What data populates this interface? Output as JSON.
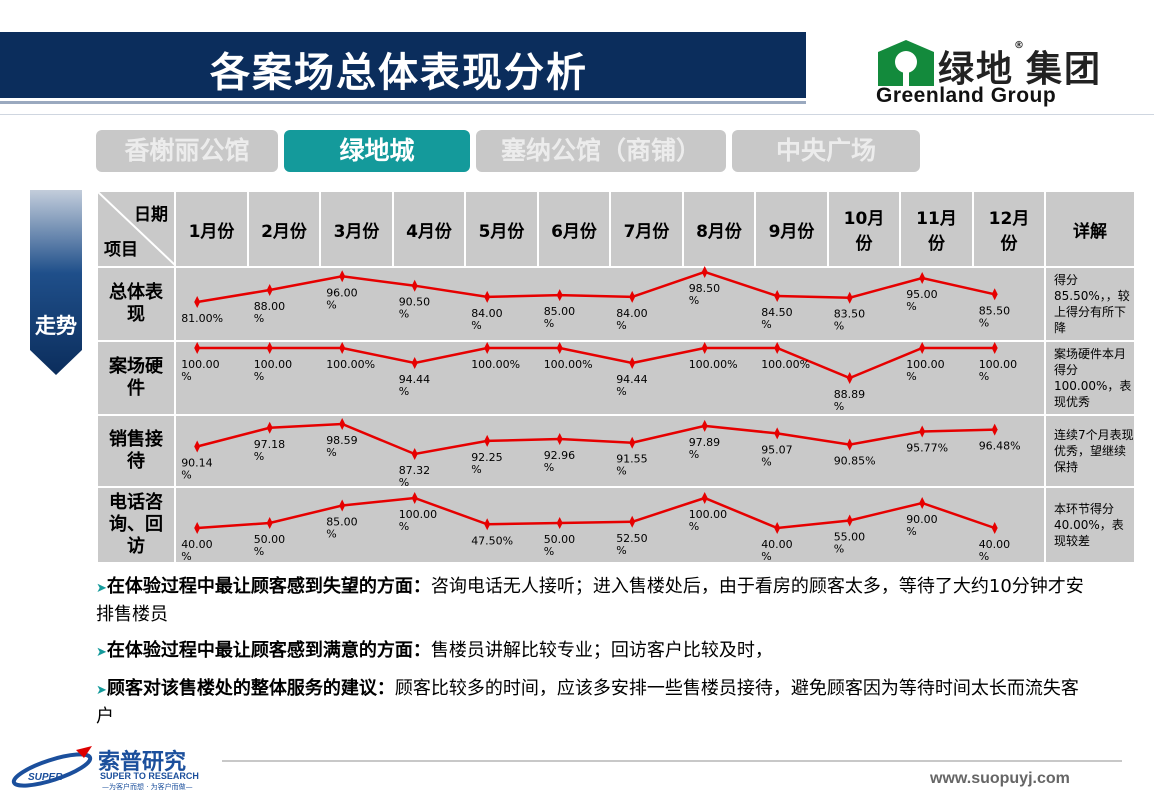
{
  "header": {
    "title": "各案场总体表现分析"
  },
  "logo": {
    "cn": "绿地",
    "reg": "®",
    "cn2": "集团",
    "en": "Greenland Group"
  },
  "tabs": [
    {
      "label": "香榭丽公馆",
      "active": false
    },
    {
      "label": "绿地城",
      "active": true
    },
    {
      "label": "塞纳公馆（商铺）",
      "active": false
    },
    {
      "label": "中央广场",
      "active": false
    }
  ],
  "side_label": "走势",
  "table": {
    "corner_top": "日期",
    "corner_bottom": "项目",
    "months": [
      "1月份",
      "2月份",
      "3月份",
      "4月份",
      "5月份",
      "6月份",
      "7月份",
      "8月份",
      "9月份",
      "10月份",
      "11月份",
      "12月份"
    ],
    "detail_header": "详解",
    "rows": [
      {
        "label": "总体表现",
        "detail": "得分85.50%，，较上得分有所下降",
        "values": [
          81.0,
          88.0,
          96.0,
          90.5,
          84.0,
          85.0,
          84.0,
          98.5,
          84.5,
          83.5,
          95.0,
          85.5
        ],
        "labels": [
          "81.00%",
          "88.00 %",
          "96.00 %",
          "90.50 %",
          "84.00 %",
          "85.00 %",
          "84.00 %",
          "98.50 %",
          "84.50 %",
          "83.50 %",
          "95.00 %",
          "85.50 %"
        ]
      },
      {
        "label": "案场硬件",
        "detail": "案场硬件本月得分100.00%，表现优秀",
        "values": [
          100.0,
          100.0,
          100.0,
          94.44,
          100.0,
          100.0,
          94.44,
          100.0,
          100.0,
          88.89,
          100.0,
          100.0
        ],
        "labels": [
          "100.00 %",
          "100.00 %",
          "100.00%",
          "94.44 %",
          "100.00%",
          "100.00%",
          "94.44 %",
          "100.00%",
          "100.00%",
          "88.89 %",
          "100.00 %",
          "100.00 %"
        ]
      },
      {
        "label": "销售接待",
        "detail": "连续7个月表现优秀，望继续保持",
        "values": [
          90.14,
          97.18,
          98.59,
          87.32,
          92.25,
          92.96,
          91.55,
          97.89,
          95.07,
          90.85,
          95.77,
          96.48
        ],
        "labels": [
          "90.14 %",
          "97.18 %",
          "98.59 %",
          "87.32 %",
          "92.25 %",
          "92.96 %",
          "91.55 %",
          "97.89 %",
          "95.07 %",
          "90.85%",
          "95.77%",
          "96.48%"
        ]
      },
      {
        "label": "电话咨询、回访",
        "detail": "本环节得分40.00%，表现较差",
        "values": [
          40.0,
          50.0,
          85.0,
          100.0,
          47.5,
          50.0,
          52.5,
          100.0,
          40.0,
          55.0,
          90.0,
          40.0
        ],
        "labels": [
          "40.00 %",
          "50.00 %",
          "85.00 %",
          "100.00 %",
          "47.50%",
          "50.00 %",
          "52.50 %",
          "100.00 %",
          "40.00 %",
          "55.00 %",
          "90.00 %",
          "40.00 %"
        ]
      }
    ]
  },
  "notes": [
    {
      "bold": "在体验过程中最让顾客感到失望的方面：",
      "text": "咨询电话无人接听；进入售楼处后，由于看房的顾客太多，等待了大约10分钟才安排售楼员"
    },
    {
      "bold": "在体验过程中最让顾客感到满意的方面：",
      "text": "售楼员讲解比较专业；回访客户比较及时，"
    },
    {
      "bold": "顾客对该售楼处的整体服务的建议：",
      "text": "顾客比较多的时间，应该多安排一些售楼员接待，避免顾客因为等待时间太长而流失客户"
    }
  ],
  "footer": {
    "cn": "索普研究",
    "en": "SUPER TO RESEARCH",
    "slogan": "—为客户而想 · 为客户而做—",
    "badge": "SUPER",
    "url": "www.suopuyj.com"
  },
  "chart_data": [
    {
      "type": "line",
      "name": "总体表现",
      "categories": [
        "1月份",
        "2月份",
        "3月份",
        "4月份",
        "5月份",
        "6月份",
        "7月份",
        "8月份",
        "9月份",
        "10月份",
        "11月份",
        "12月份"
      ],
      "values": [
        81.0,
        88.0,
        96.0,
        90.5,
        84.0,
        85.0,
        84.0,
        98.5,
        84.5,
        83.5,
        95.0,
        85.5
      ]
    },
    {
      "type": "line",
      "name": "案场硬件",
      "categories": [
        "1月份",
        "2月份",
        "3月份",
        "4月份",
        "5月份",
        "6月份",
        "7月份",
        "8月份",
        "9月份",
        "10月份",
        "11月份",
        "12月份"
      ],
      "values": [
        100.0,
        100.0,
        100.0,
        94.44,
        100.0,
        100.0,
        94.44,
        100.0,
        100.0,
        88.89,
        100.0,
        100.0
      ]
    },
    {
      "type": "line",
      "name": "销售接待",
      "categories": [
        "1月份",
        "2月份",
        "3月份",
        "4月份",
        "5月份",
        "6月份",
        "7月份",
        "8月份",
        "9月份",
        "10月份",
        "11月份",
        "12月份"
      ],
      "values": [
        90.14,
        97.18,
        98.59,
        87.32,
        92.25,
        92.96,
        91.55,
        97.89,
        95.07,
        90.85,
        95.77,
        96.48
      ]
    },
    {
      "type": "line",
      "name": "电话咨询、回访",
      "categories": [
        "1月份",
        "2月份",
        "3月份",
        "4月份",
        "5月份",
        "6月份",
        "7月份",
        "8月份",
        "9月份",
        "10月份",
        "11月份",
        "12月份"
      ],
      "values": [
        40.0,
        50.0,
        85.0,
        100.0,
        47.5,
        50.0,
        52.5,
        100.0,
        40.0,
        55.0,
        90.0,
        40.0
      ]
    }
  ],
  "colors": {
    "title_bg": "#0b2d5c",
    "tab_active": "#149a9b",
    "tab_inactive": "#c8c8c8",
    "line": "#e60000",
    "cell": "#c9c9c9"
  }
}
